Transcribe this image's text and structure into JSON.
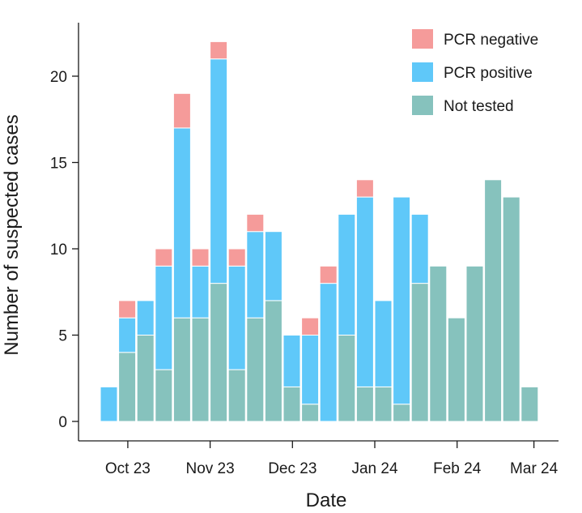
{
  "chart_data": {
    "type": "bar",
    "stacked": true,
    "title": "",
    "xlabel": "Date",
    "ylabel": "Number of suspected cases",
    "ylim": [
      0,
      23
    ],
    "yticks": [
      0,
      5,
      10,
      15,
      20
    ],
    "xtick_labels": [
      "Oct 23",
      "Nov 23",
      "Dec 23",
      "Jan 24",
      "Feb 24",
      "Mar 24"
    ],
    "xtick_bar_positions": [
      1.5,
      6,
      10.5,
      15,
      19.5,
      23.7
    ],
    "legend_position": "top-right",
    "bar_count": 25,
    "series": [
      {
        "name": "Not tested",
        "color": "#86c2bd",
        "values": [
          0,
          4,
          5,
          3,
          6,
          6,
          8,
          3,
          6,
          7,
          2,
          1,
          0,
          5,
          2,
          2,
          1,
          8,
          9,
          6,
          9,
          14,
          13,
          2,
          0
        ]
      },
      {
        "name": "PCR positive",
        "color": "#5fc8f9",
        "values": [
          2,
          2,
          2,
          6,
          11,
          3,
          13,
          6,
          5,
          4,
          3,
          4,
          8,
          7,
          11,
          5,
          12,
          4,
          0,
          0,
          0,
          0,
          0,
          0,
          0
        ]
      },
      {
        "name": "PCR negative",
        "color": "#f59b9a",
        "values": [
          0,
          1,
          0,
          1,
          2,
          1,
          1,
          1,
          1,
          0,
          0,
          1,
          1,
          0,
          1,
          0,
          0,
          0,
          0,
          0,
          0,
          0,
          0,
          0,
          0
        ]
      }
    ],
    "legend_order": [
      "PCR negative",
      "PCR positive",
      "Not tested"
    ]
  }
}
